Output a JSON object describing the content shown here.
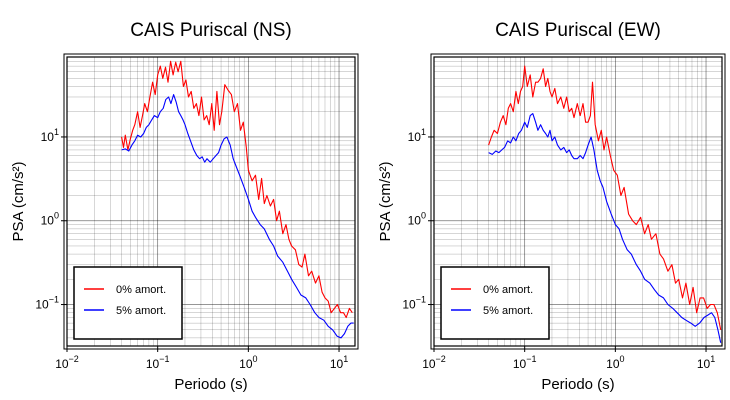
{
  "chart_data": [
    {
      "type": "line",
      "title": "CAIS Puriscal (NS)",
      "xlabel": "Periodo (s)",
      "ylabel": "PSA (cm/s²)",
      "x_scale": "log",
      "y_scale": "log",
      "xlim": [
        0.01,
        15
      ],
      "ylim": [
        0.032,
        90
      ],
      "grid": true,
      "legend_position": "bottom-left",
      "x_ticks": [
        {
          "value": 0.01,
          "base": "10",
          "exp": "−2"
        },
        {
          "value": 0.1,
          "base": "10",
          "exp": "−1"
        },
        {
          "value": 1,
          "base": "10",
          "exp": "0"
        },
        {
          "value": 10,
          "base": "10",
          "exp": "1"
        }
      ],
      "y_ticks": [
        {
          "value": 0.1,
          "label": "10",
          "exp": "−1"
        },
        {
          "value": 1,
          "label": "10",
          "exp": "0"
        },
        {
          "value": 10,
          "label": "10",
          "exp": "1"
        }
      ],
      "series": [
        {
          "name": "0% amort.",
          "color": "#ff0000",
          "x": [
            0.04,
            0.042,
            0.044,
            0.047,
            0.05,
            0.053,
            0.056,
            0.06,
            0.064,
            0.068,
            0.072,
            0.077,
            0.082,
            0.088,
            0.094,
            0.1,
            0.107,
            0.114,
            0.122,
            0.13,
            0.139,
            0.148,
            0.158,
            0.168,
            0.18,
            0.192,
            0.205,
            0.219,
            0.234,
            0.25,
            0.267,
            0.285,
            0.304,
            0.325,
            0.347,
            0.37,
            0.395,
            0.42,
            0.45,
            0.48,
            0.51,
            0.55,
            0.6,
            0.65,
            0.7,
            0.76,
            0.82,
            0.88,
            0.95,
            1.0,
            1.1,
            1.2,
            1.3,
            1.4,
            1.5,
            1.6,
            1.75,
            1.9,
            2.05,
            2.2,
            2.4,
            2.6,
            2.8,
            3.0,
            3.3,
            3.6,
            3.9,
            4.2,
            4.6,
            5.0,
            5.5,
            6.0,
            6.5,
            7.0,
            7.6,
            8.2,
            8.9,
            9.6,
            10.4,
            11.2,
            12.0,
            13.0,
            14.0
          ],
          "y": [
            10,
            7.5,
            10.5,
            7.0,
            9.5,
            12,
            14,
            20,
            13,
            18,
            25,
            20,
            30,
            45,
            32,
            55,
            70,
            50,
            68,
            45,
            80,
            55,
            78,
            60,
            80,
            40,
            48,
            30,
            35,
            22,
            25,
            18,
            30,
            16,
            18,
            14,
            25,
            12,
            35,
            14,
            20,
            42,
            36,
            32,
            20,
            25,
            12,
            15,
            7.5,
            4,
            3,
            3.5,
            1.8,
            3.2,
            1.6,
            2.0,
            1.5,
            1.8,
            1.0,
            1.3,
            0.7,
            0.9,
            0.6,
            0.5,
            0.45,
            0.3,
            0.28,
            0.4,
            0.22,
            0.25,
            0.18,
            0.22,
            0.14,
            0.12,
            0.11,
            0.08,
            0.09,
            0.1,
            0.08,
            0.08,
            0.07,
            0.09,
            0.08
          ]
        },
        {
          "name": "5% amort.",
          "color": "#0000ff",
          "x": [
            0.04,
            0.044,
            0.048,
            0.052,
            0.056,
            0.06,
            0.065,
            0.07,
            0.075,
            0.08,
            0.086,
            0.092,
            0.1,
            0.107,
            0.115,
            0.123,
            0.132,
            0.14,
            0.15,
            0.16,
            0.17,
            0.18,
            0.19,
            0.2,
            0.215,
            0.23,
            0.25,
            0.27,
            0.29,
            0.31,
            0.33,
            0.35,
            0.38,
            0.41,
            0.44,
            0.47,
            0.5,
            0.54,
            0.58,
            0.63,
            0.68,
            0.73,
            0.8,
            0.9,
            1.0,
            1.1,
            1.2,
            1.35,
            1.5,
            1.7,
            1.9,
            2.1,
            2.4,
            2.7,
            3.0,
            3.4,
            3.8,
            4.3,
            4.8,
            5.4,
            6.0,
            6.8,
            7.6,
            8.5,
            9.5,
            10.5,
            11.5,
            12.5,
            13.5,
            14.5
          ],
          "y": [
            7,
            7.2,
            6.8,
            8,
            9,
            10.5,
            10,
            11,
            13,
            14,
            16,
            18,
            17,
            20,
            22,
            28,
            30,
            25,
            32,
            26,
            20,
            18,
            16,
            14,
            11,
            9,
            7,
            6,
            5.5,
            5.8,
            5.0,
            5.5,
            5.0,
            5.5,
            6.0,
            6.5,
            8,
            9.5,
            10,
            8,
            5.5,
            4.5,
            3.5,
            2.5,
            1.8,
            1.3,
            1.1,
            0.9,
            0.8,
            0.6,
            0.5,
            0.38,
            0.32,
            0.25,
            0.2,
            0.16,
            0.13,
            0.12,
            0.1,
            0.08,
            0.07,
            0.065,
            0.055,
            0.05,
            0.042,
            0.04,
            0.045,
            0.055,
            0.06,
            0.06
          ]
        }
      ]
    },
    {
      "type": "line",
      "title": "CAIS Puriscal (EW)",
      "xlabel": "Periodo (s)",
      "ylabel": "PSA (cm/s²)",
      "x_scale": "log",
      "y_scale": "log",
      "xlim": [
        0.01,
        15
      ],
      "ylim": [
        0.032,
        90
      ],
      "grid": true,
      "legend_position": "bottom-left",
      "x_ticks": [
        {
          "value": 0.01,
          "base": "10",
          "exp": "−2"
        },
        {
          "value": 0.1,
          "base": "10",
          "exp": "−1"
        },
        {
          "value": 1,
          "base": "10",
          "exp": "0"
        },
        {
          "value": 10,
          "base": "10",
          "exp": "1"
        }
      ],
      "y_ticks": [
        {
          "value": 0.1,
          "label": "10",
          "exp": "−1"
        },
        {
          "value": 1,
          "label": "10",
          "exp": "0"
        },
        {
          "value": 10,
          "label": "10",
          "exp": "1"
        }
      ],
      "series": [
        {
          "name": "0% amort.",
          "color": "#ff0000",
          "x": [
            0.04,
            0.043,
            0.046,
            0.05,
            0.054,
            0.058,
            0.062,
            0.066,
            0.07,
            0.075,
            0.08,
            0.085,
            0.09,
            0.095,
            0.1,
            0.107,
            0.115,
            0.123,
            0.132,
            0.14,
            0.15,
            0.16,
            0.17,
            0.18,
            0.19,
            0.2,
            0.215,
            0.23,
            0.25,
            0.27,
            0.29,
            0.31,
            0.33,
            0.35,
            0.38,
            0.41,
            0.44,
            0.47,
            0.5,
            0.53,
            0.56,
            0.6,
            0.65,
            0.7,
            0.75,
            0.8,
            0.88,
            0.96,
            1.05,
            1.15,
            1.25,
            1.4,
            1.55,
            1.7,
            1.9,
            2.1,
            2.3,
            2.5,
            2.8,
            3.1,
            3.4,
            3.8,
            4.2,
            4.6,
            5.0,
            5.5,
            6.0,
            6.6,
            7.2,
            7.9,
            8.6,
            9.4,
            10.3,
            11.2,
            12.2,
            13.3,
            14.5
          ],
          "y": [
            8,
            10,
            12,
            11,
            15,
            18,
            14,
            22,
            25,
            20,
            35,
            25,
            35,
            40,
            70,
            40,
            55,
            30,
            45,
            45,
            50,
            65,
            40,
            50,
            35,
            30,
            38,
            25,
            30,
            22,
            30,
            20,
            22,
            17,
            25,
            18,
            25,
            15,
            15,
            18,
            45,
            14,
            9,
            12,
            7,
            10,
            6,
            4,
            3.5,
            2.0,
            2.5,
            1.2,
            1.0,
            0.9,
            1.1,
            0.7,
            0.9,
            0.6,
            0.7,
            0.4,
            0.35,
            0.25,
            0.3,
            0.18,
            0.2,
            0.12,
            0.18,
            0.1,
            0.16,
            0.08,
            0.12,
            0.12,
            0.09,
            0.1,
            0.1,
            0.08,
            0.05
          ]
        },
        {
          "name": "5% amort.",
          "color": "#0000ff",
          "x": [
            0.04,
            0.044,
            0.048,
            0.052,
            0.056,
            0.06,
            0.065,
            0.07,
            0.075,
            0.08,
            0.086,
            0.092,
            0.1,
            0.107,
            0.115,
            0.123,
            0.132,
            0.14,
            0.15,
            0.16,
            0.17,
            0.18,
            0.19,
            0.2,
            0.215,
            0.23,
            0.25,
            0.27,
            0.29,
            0.31,
            0.33,
            0.35,
            0.38,
            0.41,
            0.44,
            0.47,
            0.5,
            0.54,
            0.58,
            0.63,
            0.68,
            0.73,
            0.8,
            0.9,
            1.0,
            1.1,
            1.2,
            1.35,
            1.5,
            1.7,
            1.9,
            2.1,
            2.4,
            2.7,
            3.0,
            3.4,
            3.8,
            4.3,
            4.8,
            5.4,
            6.0,
            6.8,
            7.6,
            8.5,
            9.5,
            10.5,
            11.5,
            12.5,
            13.5,
            14.5
          ],
          "y": [
            6.5,
            6.2,
            6.8,
            6.5,
            7,
            7.5,
            9,
            8.5,
            10,
            9,
            11,
            12,
            15,
            13,
            18,
            19,
            15,
            12,
            14,
            12,
            11,
            10,
            12,
            9,
            10,
            8,
            7,
            7.5,
            6.5,
            7,
            6,
            5.5,
            5.5,
            6,
            5.5,
            6.5,
            8,
            10,
            7,
            4,
            3,
            2.5,
            1.7,
            1.2,
            0.9,
            0.8,
            0.6,
            0.45,
            0.4,
            0.3,
            0.25,
            0.2,
            0.18,
            0.15,
            0.13,
            0.12,
            0.1,
            0.09,
            0.08,
            0.07,
            0.065,
            0.06,
            0.055,
            0.06,
            0.07,
            0.075,
            0.08,
            0.07,
            0.05,
            0.035
          ]
        }
      ]
    }
  ]
}
